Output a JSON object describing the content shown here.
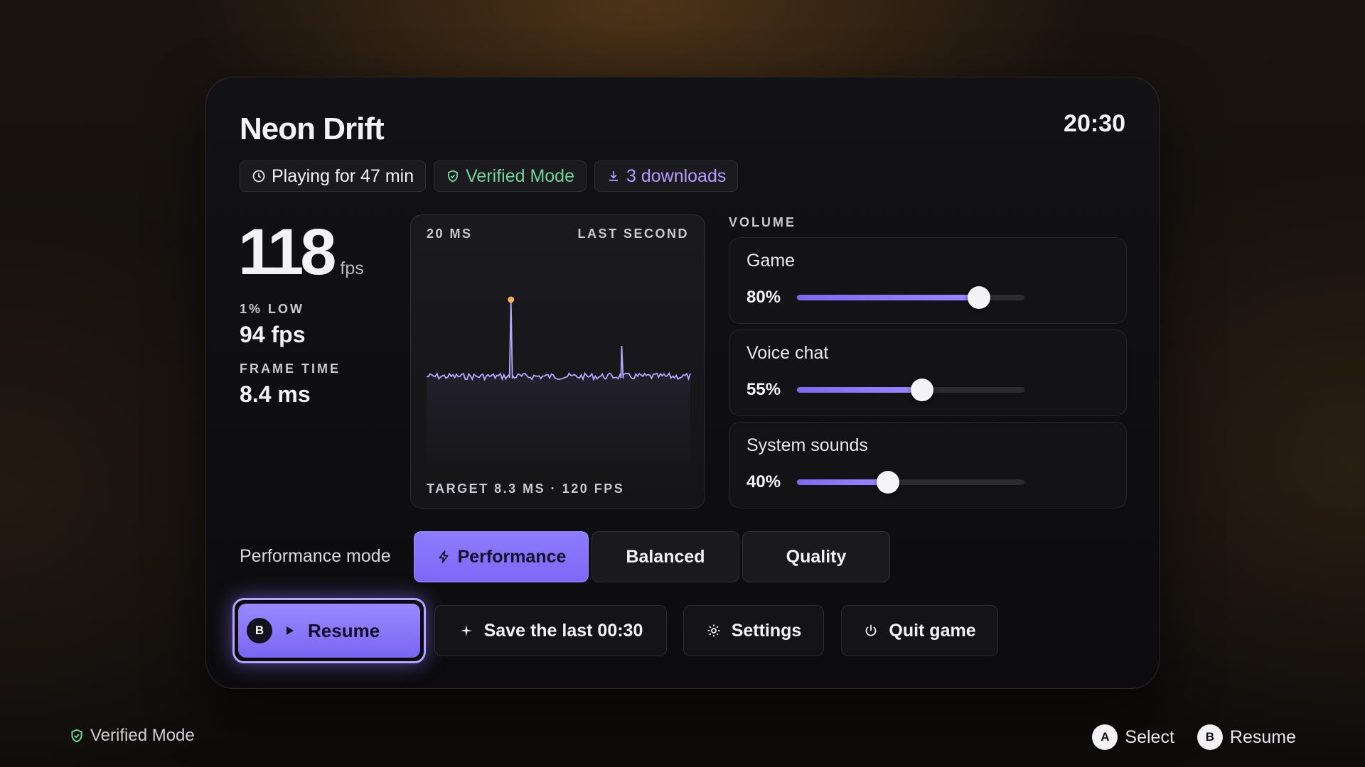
{
  "game": {
    "title": "Neon Drift",
    "clock": "20:30"
  },
  "chips": {
    "playtime": "Playing for 47 min",
    "verified": "Verified Mode",
    "downloads": "3 downloads"
  },
  "stats": {
    "fps": "118",
    "fps_unit": "fps",
    "low_label": "1% LOW",
    "low_value": "94 fps",
    "frametime_label": "FRAME TIME",
    "frametime_value": "8.4 ms"
  },
  "graph": {
    "scale_label": "20 MS",
    "window_label": "LAST SECOND",
    "target_label": "TARGET 8.3 MS · 120 FPS",
    "line_color": "#b7a6ff",
    "spike_color": "#f5b35a"
  },
  "volume": {
    "label": "VOLUME",
    "channels": [
      {
        "name": "Game",
        "pct_text": "80%",
        "level": 0.8
      },
      {
        "name": "Voice chat",
        "pct_text": "55%",
        "level": 0.55
      },
      {
        "name": "System sounds",
        "pct_text": "40%",
        "level": 0.4
      }
    ]
  },
  "mode": {
    "label": "Performance mode",
    "options": [
      "Performance",
      "Balanced",
      "Quality"
    ],
    "selected": "Performance"
  },
  "actions": {
    "resume_badge": "B",
    "resume": "Resume",
    "save_clip": "Save the last 00:30",
    "settings": "Settings",
    "quit": "Quit game"
  },
  "footer": {
    "verified": "Verified Mode",
    "hints": [
      {
        "badge": "A",
        "label": "Select"
      },
      {
        "badge": "B",
        "label": "Resume"
      }
    ]
  },
  "colors": {
    "accent": "#8b76ff",
    "verified": "#6fd69a",
    "downloads": "#b39cff"
  },
  "icons": [
    "clock-icon",
    "shield-check-icon",
    "download-icon",
    "bolt-icon",
    "play-icon",
    "sparkle-icon",
    "gear-icon",
    "power-icon"
  ]
}
